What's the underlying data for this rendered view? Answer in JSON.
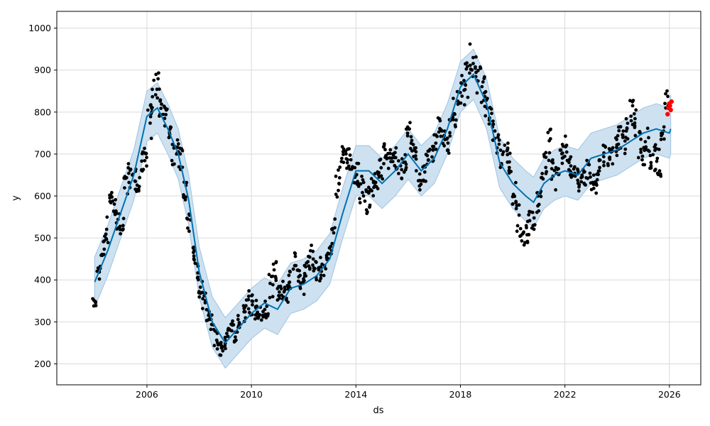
{
  "chart_data": {
    "type": "line",
    "title": "",
    "xlabel": "ds",
    "ylabel": "y",
    "xlim": [
      2002.55,
      2027.2
    ],
    "ylim": [
      150,
      1040
    ],
    "grid": true,
    "x_ticks": [
      2006,
      2010,
      2014,
      2018,
      2022,
      2026
    ],
    "x_tick_labels": [
      "2006",
      "2010",
      "2014",
      "2018",
      "2022",
      "2026"
    ],
    "y_ticks": [
      200,
      300,
      400,
      500,
      600,
      700,
      800,
      900,
      1000
    ],
    "y_tick_labels": [
      "200",
      "300",
      "400",
      "500",
      "600",
      "700",
      "800",
      "900",
      "1000"
    ],
    "colors": {
      "forecast": "#0072b2",
      "interval": "#cde1f0",
      "interval_edge": "#9fc4e2",
      "observed": "#000000",
      "recent": "#ff0000"
    },
    "series": [
      {
        "kind": "forecast",
        "x": [
          2004.0,
          2004.5,
          2005.0,
          2005.5,
          2006.0,
          2006.4,
          2006.8,
          2007.2,
          2007.6,
          2008.0,
          2008.5,
          2009.0,
          2009.5,
          2010.0,
          2010.5,
          2011.0,
          2011.5,
          2012.0,
          2012.5,
          2013.0,
          2013.5,
          2014.0,
          2014.5,
          2015.0,
          2015.5,
          2016.0,
          2016.5,
          2017.0,
          2017.5,
          2018.0,
          2018.5,
          2019.0,
          2019.5,
          2020.0,
          2020.5,
          2020.8,
          2021.2,
          2021.6,
          2022.0,
          2022.5,
          2023.0,
          2023.5,
          2024.0,
          2024.5,
          2025.0,
          2025.5,
          2026.0,
          2026.05
        ],
        "y": [
          395,
          470,
          560,
          650,
          790,
          810,
          760,
          700,
          590,
          420,
          300,
          250,
          285,
          320,
          345,
          330,
          380,
          390,
          410,
          450,
          560,
          660,
          660,
          630,
          660,
          700,
          660,
          690,
          760,
          860,
          890,
          820,
          680,
          630,
          600,
          585,
          630,
          650,
          660,
          650,
          690,
          700,
          710,
          730,
          750,
          760,
          750,
          760
        ],
        "upper": [
          455,
          530,
          620,
          710,
          850,
          870,
          820,
          760,
          650,
          480,
          360,
          310,
          345,
          380,
          405,
          390,
          440,
          450,
          470,
          510,
          620,
          720,
          720,
          690,
          720,
          760,
          720,
          750,
          820,
          920,
          950,
          880,
          740,
          690,
          660,
          645,
          690,
          710,
          720,
          710,
          750,
          760,
          770,
          790,
          810,
          820,
          810,
          840
        ],
        "lower": [
          335,
          410,
          500,
          590,
          730,
          750,
          700,
          640,
          530,
          360,
          240,
          190,
          225,
          260,
          285,
          270,
          320,
          330,
          350,
          390,
          500,
          600,
          600,
          570,
          600,
          640,
          600,
          630,
          700,
          800,
          830,
          760,
          620,
          570,
          540,
          525,
          570,
          590,
          600,
          590,
          630,
          640,
          650,
          670,
          690,
          700,
          690,
          700
        ]
      },
      {
        "kind": "observed",
        "x": [
          2004.0,
          2004.15,
          2004.3,
          2004.45,
          2004.6,
          2004.75,
          2004.9,
          2005.05,
          2005.2,
          2005.35,
          2005.5,
          2005.65,
          2005.8,
          2005.95,
          2006.1,
          2006.25,
          2006.4,
          2006.55,
          2006.7,
          2006.85,
          2007.0,
          2007.15,
          2007.3,
          2007.45,
          2007.6,
          2007.75,
          2007.9,
          2008.05,
          2008.2,
          2008.35,
          2008.5,
          2008.65,
          2008.8,
          2008.95,
          2009.1,
          2009.25,
          2009.4,
          2009.55,
          2009.7,
          2009.85,
          2010.0,
          2010.15,
          2010.3,
          2010.45,
          2010.6,
          2010.75,
          2010.9,
          2011.05,
          2011.2,
          2011.35,
          2011.5,
          2011.65,
          2011.8,
          2011.95,
          2012.1,
          2012.25,
          2012.4,
          2012.55,
          2012.7,
          2012.85,
          2013.0,
          2013.15,
          2013.3,
          2013.45,
          2013.6,
          2013.75,
          2013.9,
          2014.05,
          2014.2,
          2014.35,
          2014.5,
          2014.65,
          2014.8,
          2014.95,
          2015.1,
          2015.25,
          2015.4,
          2015.55,
          2015.7,
          2015.85,
          2016.0,
          2016.15,
          2016.3,
          2016.45,
          2016.6,
          2016.75,
          2016.9,
          2017.05,
          2017.2,
          2017.35,
          2017.5,
          2017.65,
          2017.8,
          2017.95,
          2018.1,
          2018.25,
          2018.4,
          2018.55,
          2018.7,
          2018.85,
          2019.0,
          2019.15,
          2019.3,
          2019.45,
          2019.6,
          2019.75,
          2019.9,
          2020.05,
          2020.2,
          2020.35,
          2020.5,
          2020.65,
          2020.8,
          2020.95,
          2021.1,
          2021.25,
          2021.4,
          2021.55,
          2021.7,
          2021.85,
          2022.0,
          2022.15,
          2022.3,
          2022.45,
          2022.6,
          2022.75,
          2022.9,
          2023.05,
          2023.2,
          2023.35,
          2023.5,
          2023.65,
          2023.8,
          2023.95,
          2024.1,
          2024.25,
          2024.4,
          2024.55,
          2024.7,
          2024.85,
          2025.0,
          2025.15,
          2025.3,
          2025.45,
          2025.6,
          2025.75,
          2025.9
        ],
        "y": [
          345,
          420,
          470,
          520,
          600,
          570,
          540,
          530,
          620,
          650,
          640,
          620,
          680,
          700,
          780,
          840,
          860,
          820,
          790,
          740,
          700,
          720,
          690,
          620,
          540,
          470,
          420,
          380,
          350,
          320,
          300,
          260,
          230,
          250,
          270,
          290,
          270,
          300,
          320,
          350,
          340,
          330,
          320,
          310,
          330,
          390,
          430,
          360,
          380,
          370,
          410,
          440,
          400,
          390,
          420,
          460,
          440,
          420,
          430,
          440,
          460,
          520,
          640,
          680,
          700,
          690,
          660,
          650,
          620,
          600,
          590,
          620,
          640,
          660,
          700,
          690,
          680,
          690,
          660,
          680,
          760,
          720,
          690,
          640,
          650,
          680,
          700,
          740,
          760,
          740,
          720,
          760,
          800,
          830,
          860,
          880,
          920,
          900,
          880,
          850,
          820,
          800,
          760,
          720,
          690,
          700,
          680,
          600,
          560,
          490,
          500,
          540,
          540,
          580,
          620,
          680,
          720,
          660,
          640,
          700,
          720,
          680,
          650,
          640,
          630,
          650,
          660,
          640,
          630,
          670,
          700,
          690,
          700,
          720,
          740,
          730,
          760,
          800,
          780,
          720,
          700,
          740,
          700,
          690,
          680,
          760,
          830
        ],
        "spread": [
          12,
          20,
          28,
          35,
          30,
          28,
          22,
          20,
          28,
          32,
          26,
          24,
          28,
          30,
          45,
          40,
          35,
          30,
          28,
          25,
          30,
          32,
          28,
          30,
          30,
          25,
          22,
          22,
          20,
          20,
          20,
          25,
          22,
          20,
          20,
          22,
          20,
          22,
          25,
          30,
          25,
          24,
          22,
          22,
          28,
          35,
          32,
          25,
          26,
          24,
          30,
          32,
          25,
          25,
          28,
          35,
          30,
          25,
          28,
          30,
          30,
          35,
          45,
          40,
          35,
          32,
          30,
          30,
          40,
          45,
          35,
          30,
          28,
          28,
          25,
          25,
          28,
          28,
          30,
          25,
          45,
          35,
          30,
          28,
          25,
          28,
          28,
          30,
          28,
          25,
          25,
          30,
          35,
          40,
          45,
          45,
          45,
          35,
          35,
          35,
          30,
          30,
          35,
          30,
          28,
          28,
          30,
          40,
          45,
          35,
          30,
          35,
          30,
          30,
          35,
          40,
          45,
          35,
          30,
          30,
          30,
          30,
          28,
          25,
          25,
          28,
          28,
          25,
          25,
          28,
          30,
          28,
          25,
          28,
          30,
          30,
          32,
          35,
          40,
          35,
          30,
          35,
          40,
          35,
          35,
          30,
          28
        ]
      },
      {
        "kind": "recent",
        "x": [
          2025.93,
          2025.96,
          2025.99,
          2026.02,
          2026.05,
          2026.08
        ],
        "y": [
          795,
          810,
          820,
          815,
          805,
          825
        ]
      }
    ]
  }
}
